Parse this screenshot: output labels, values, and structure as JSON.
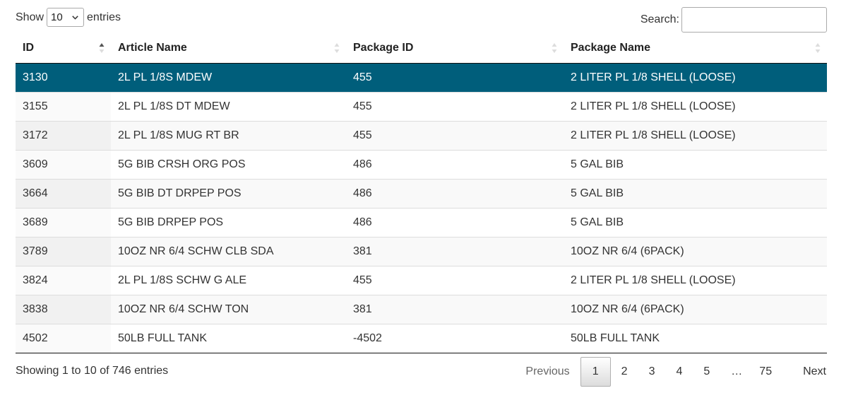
{
  "length": {
    "show_label": "Show",
    "selected": "10",
    "entries_label": "entries"
  },
  "search": {
    "label": "Search:",
    "value": ""
  },
  "columns": [
    {
      "label": "ID"
    },
    {
      "label": "Article Name"
    },
    {
      "label": "Package ID"
    },
    {
      "label": "Package Name"
    }
  ],
  "rows": [
    {
      "id": "3130",
      "article": "2L PL 1/8S MDEW",
      "package_id": "455",
      "package_name": "2 LITER PL 1/8 SHELL (LOOSE)"
    },
    {
      "id": "3155",
      "article": "2L PL 1/8S DT MDEW",
      "package_id": "455",
      "package_name": "2 LITER PL 1/8 SHELL (LOOSE)"
    },
    {
      "id": "3172",
      "article": "2L PL 1/8S MUG RT BR",
      "package_id": "455",
      "package_name": "2 LITER PL 1/8 SHELL (LOOSE)"
    },
    {
      "id": "3609",
      "article": "5G BIB CRSH ORG POS",
      "package_id": "486",
      "package_name": "5 GAL BIB"
    },
    {
      "id": "3664",
      "article": "5G BIB DT DRPEP POS",
      "package_id": "486",
      "package_name": "5 GAL BIB"
    },
    {
      "id": "3689",
      "article": "5G BIB DRPEP POS",
      "package_id": "486",
      "package_name": "5 GAL BIB"
    },
    {
      "id": "3789",
      "article": "10OZ NR 6/4 SCHW CLB SDA",
      "package_id": "381",
      "package_name": "10OZ NR 6/4 (6PACK)"
    },
    {
      "id": "3824",
      "article": "2L PL 1/8S SCHW G ALE",
      "package_id": "455",
      "package_name": "2 LITER PL 1/8 SHELL (LOOSE)"
    },
    {
      "id": "3838",
      "article": "10OZ NR 6/4 SCHW TON",
      "package_id": "381",
      "package_name": "10OZ NR 6/4 (6PACK)"
    },
    {
      "id": "4502",
      "article": "50LB FULL TANK",
      "package_id": "-4502",
      "package_name": "50LB FULL TANK"
    }
  ],
  "info": "Showing 1 to 10 of 746 entries",
  "pagination": {
    "previous": "Previous",
    "pages": [
      "1",
      "2",
      "3",
      "4",
      "5"
    ],
    "ellipsis": "…",
    "last": "75",
    "next": "Next"
  },
  "colors": {
    "selected_row": "#005e7b",
    "selected_text": "#ffffff"
  },
  "icons": {
    "sort_asc": "sort-asc-icon",
    "sort_both": "sort-both-icon",
    "select_caret": "chevron-down-icon"
  }
}
